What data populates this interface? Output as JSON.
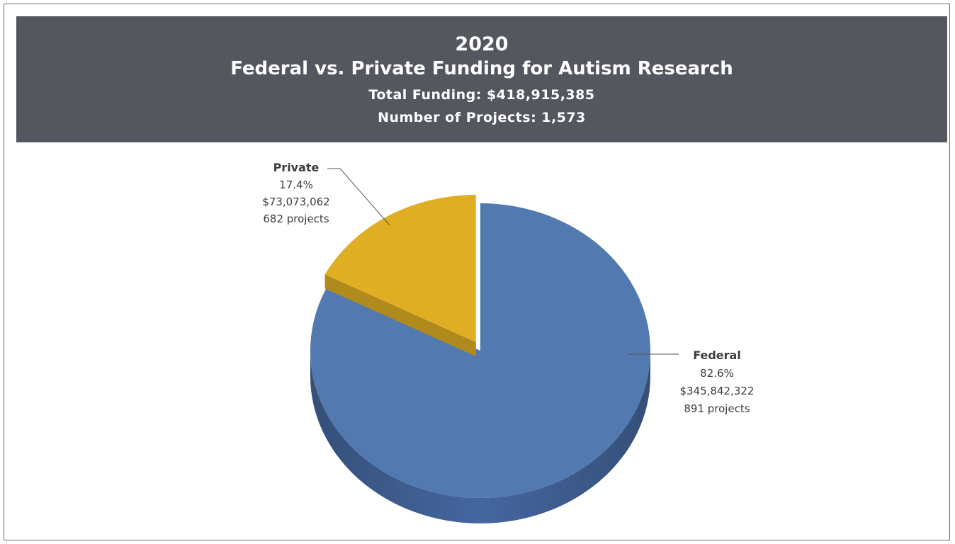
{
  "header": {
    "year": "2020",
    "title": "Federal vs. Private Funding for Autism Research",
    "total_funding": "Total Funding: $418,915,385",
    "num_projects": "Number of Projects: 1,573"
  },
  "chart_data": {
    "type": "pie",
    "title": "2020 Federal vs. Private Funding for Autism Research",
    "slices": [
      {
        "label": "Federal",
        "percent": 82.6,
        "percent_text": "82.6%",
        "amount_text": "$345,842,322",
        "projects_text": "891 projects",
        "color": "#5279b0",
        "side_color": "#3e5e8e",
        "exploded": false
      },
      {
        "label": "Private",
        "percent": 17.4,
        "percent_text": "17.4%",
        "amount_text": "$73,073,062",
        "projects_text": "682 projects",
        "color": "#e0ae22",
        "side_color": "#b08a1c",
        "exploded": true
      }
    ],
    "legend": "none"
  }
}
